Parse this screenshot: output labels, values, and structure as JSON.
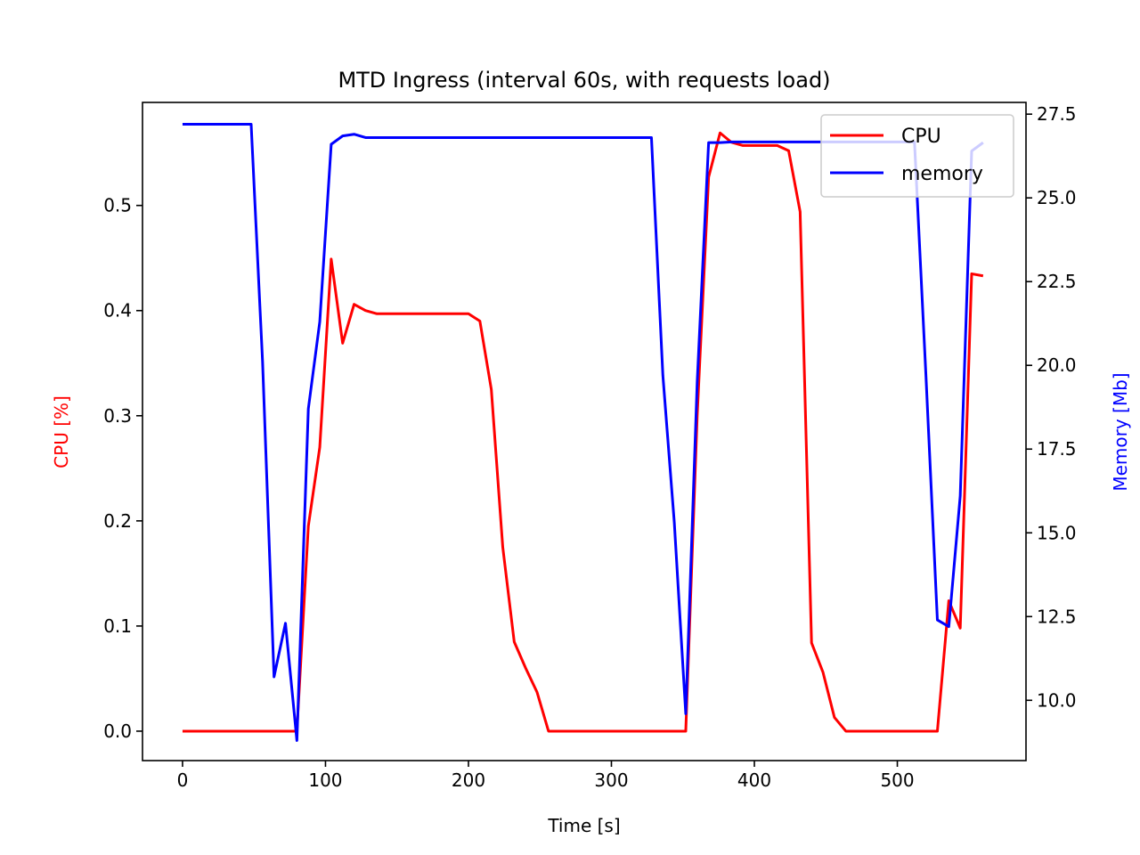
{
  "chart_data": {
    "type": "line",
    "title": "MTD Ingress (interval 60s, with requests load)",
    "xlabel": "Time [s]",
    "ylabel_left": "CPU [%]",
    "ylabel_right": "Memory [Mb]",
    "xlim": [
      -28,
      590
    ],
    "ylim_left": [
      -0.028,
      0.598
    ],
    "ylim_right": [
      8.2,
      27.85
    ],
    "x_ticks": [
      0,
      100,
      200,
      300,
      400,
      500
    ],
    "x_tick_labels": [
      "0",
      "100",
      "200",
      "300",
      "400",
      "500"
    ],
    "y_left_ticks": [
      0.0,
      0.1,
      0.2,
      0.3,
      0.4,
      0.5
    ],
    "y_left_tick_labels": [
      "0.0",
      "0.1",
      "0.2",
      "0.3",
      "0.4",
      "0.5"
    ],
    "y_right_ticks": [
      10.0,
      12.5,
      15.0,
      17.5,
      20.0,
      22.5,
      25.0,
      27.5
    ],
    "y_right_tick_labels": [
      "10.0",
      "12.5",
      "15.0",
      "17.5",
      "20.0",
      "22.5",
      "25.0",
      "27.5"
    ],
    "grid": false,
    "legend_position": "top-right",
    "colors": {
      "cpu": "#ff0000",
      "memory": "#0000ff",
      "axis": "#000000"
    },
    "series": [
      {
        "name": "CPU",
        "axis": "left",
        "color": "#ff0000",
        "points": [
          [
            0,
            0.0
          ],
          [
            8,
            0.0
          ],
          [
            16,
            0.0
          ],
          [
            24,
            0.0
          ],
          [
            32,
            0.0
          ],
          [
            40,
            0.0
          ],
          [
            48,
            0.0
          ],
          [
            56,
            0.0
          ],
          [
            64,
            0.0
          ],
          [
            72,
            0.0
          ],
          [
            80,
            0.0
          ],
          [
            88,
            0.195
          ],
          [
            96,
            0.27
          ],
          [
            104,
            0.449
          ],
          [
            112,
            0.369
          ],
          [
            120,
            0.406
          ],
          [
            128,
            0.4
          ],
          [
            136,
            0.397
          ],
          [
            144,
            0.397
          ],
          [
            152,
            0.397
          ],
          [
            160,
            0.397
          ],
          [
            168,
            0.397
          ],
          [
            176,
            0.397
          ],
          [
            184,
            0.397
          ],
          [
            192,
            0.397
          ],
          [
            200,
            0.397
          ],
          [
            208,
            0.39
          ],
          [
            216,
            0.325
          ],
          [
            224,
            0.175
          ],
          [
            232,
            0.085
          ],
          [
            240,
            0.06
          ],
          [
            248,
            0.037
          ],
          [
            256,
            0.0
          ],
          [
            264,
            0.0
          ],
          [
            272,
            0.0
          ],
          [
            280,
            0.0
          ],
          [
            288,
            0.0
          ],
          [
            296,
            0.0
          ],
          [
            304,
            0.0
          ],
          [
            312,
            0.0
          ],
          [
            320,
            0.0
          ],
          [
            328,
            0.0
          ],
          [
            336,
            0.0
          ],
          [
            344,
            0.0
          ],
          [
            352,
            0.0
          ],
          [
            360,
            0.3
          ],
          [
            368,
            0.527
          ],
          [
            376,
            0.569
          ],
          [
            384,
            0.56
          ],
          [
            392,
            0.557
          ],
          [
            400,
            0.557
          ],
          [
            408,
            0.557
          ],
          [
            416,
            0.557
          ],
          [
            424,
            0.552
          ],
          [
            432,
            0.494
          ],
          [
            440,
            0.084
          ],
          [
            448,
            0.056
          ],
          [
            456,
            0.013
          ],
          [
            464,
            0.0
          ],
          [
            472,
            0.0
          ],
          [
            480,
            0.0
          ],
          [
            488,
            0.0
          ],
          [
            496,
            0.0
          ],
          [
            504,
            0.0
          ],
          [
            512,
            0.0
          ],
          [
            520,
            0.0
          ],
          [
            528,
            0.0
          ],
          [
            536,
            0.124
          ],
          [
            544,
            0.098
          ],
          [
            552,
            0.435
          ],
          [
            560,
            0.433
          ]
        ]
      },
      {
        "name": "memory",
        "axis": "right",
        "color": "#0000ff",
        "points": [
          [
            0,
            27.2
          ],
          [
            8,
            27.2
          ],
          [
            16,
            27.2
          ],
          [
            24,
            27.2
          ],
          [
            32,
            27.2
          ],
          [
            40,
            27.2
          ],
          [
            48,
            27.2
          ],
          [
            56,
            20.1
          ],
          [
            64,
            10.7
          ],
          [
            72,
            12.3
          ],
          [
            80,
            8.8
          ],
          [
            88,
            18.7
          ],
          [
            96,
            21.3
          ],
          [
            104,
            26.6
          ],
          [
            112,
            26.85
          ],
          [
            120,
            26.9
          ],
          [
            128,
            26.8
          ],
          [
            136,
            26.8
          ],
          [
            144,
            26.8
          ],
          [
            152,
            26.8
          ],
          [
            160,
            26.8
          ],
          [
            168,
            26.8
          ],
          [
            176,
            26.8
          ],
          [
            184,
            26.8
          ],
          [
            192,
            26.8
          ],
          [
            200,
            26.8
          ],
          [
            208,
            26.8
          ],
          [
            216,
            26.8
          ],
          [
            224,
            26.8
          ],
          [
            232,
            26.8
          ],
          [
            240,
            26.8
          ],
          [
            248,
            26.8
          ],
          [
            256,
            26.8
          ],
          [
            264,
            26.8
          ],
          [
            272,
            26.8
          ],
          [
            280,
            26.8
          ],
          [
            288,
            26.8
          ],
          [
            296,
            26.8
          ],
          [
            304,
            26.8
          ],
          [
            312,
            26.8
          ],
          [
            320,
            26.8
          ],
          [
            328,
            26.8
          ],
          [
            336,
            19.7
          ],
          [
            344,
            15.3
          ],
          [
            352,
            9.6
          ],
          [
            360,
            19.5
          ],
          [
            368,
            26.65
          ],
          [
            376,
            26.65
          ],
          [
            384,
            26.67
          ],
          [
            392,
            26.67
          ],
          [
            400,
            26.67
          ],
          [
            408,
            26.67
          ],
          [
            416,
            26.67
          ],
          [
            424,
            26.67
          ],
          [
            432,
            26.67
          ],
          [
            440,
            26.67
          ],
          [
            448,
            26.67
          ],
          [
            456,
            26.67
          ],
          [
            464,
            26.67
          ],
          [
            472,
            26.67
          ],
          [
            480,
            26.67
          ],
          [
            488,
            26.67
          ],
          [
            496,
            26.67
          ],
          [
            504,
            26.67
          ],
          [
            512,
            26.67
          ],
          [
            520,
            19.7
          ],
          [
            528,
            12.4
          ],
          [
            536,
            12.2
          ],
          [
            544,
            16.1
          ],
          [
            552,
            26.4
          ],
          [
            560,
            26.65
          ]
        ]
      }
    ]
  }
}
